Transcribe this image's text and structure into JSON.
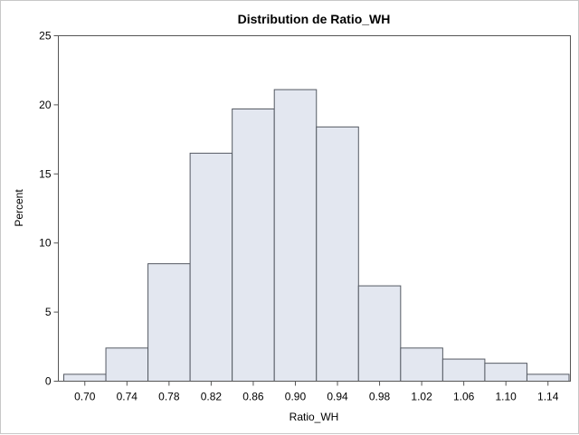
{
  "chart_data": {
    "type": "bar",
    "title": "Distribution de Ratio_WH",
    "xlabel": "Ratio_WH",
    "ylabel": "Percent",
    "xlim": [
      0.68,
      1.16
    ],
    "ylim": [
      0,
      25
    ],
    "bin_width": 0.04,
    "x": [
      0.7,
      0.74,
      0.78,
      0.82,
      0.86,
      0.9,
      0.94,
      0.98,
      1.02,
      1.06,
      1.1,
      1.14
    ],
    "categories": [
      "0.70",
      "0.74",
      "0.78",
      "0.82",
      "0.86",
      "0.90",
      "0.94",
      "0.98",
      "1.02",
      "1.06",
      "1.10",
      "1.14"
    ],
    "values": [
      0.5,
      2.4,
      8.5,
      16.5,
      19.7,
      21.1,
      18.4,
      6.9,
      2.4,
      1.6,
      1.3,
      0.5
    ],
    "y_ticks": [
      0,
      5,
      10,
      15,
      20,
      25
    ],
    "grid": false,
    "colors": {
      "bar_fill": "#e3e7f0",
      "bar_stroke": "#555a63"
    }
  }
}
